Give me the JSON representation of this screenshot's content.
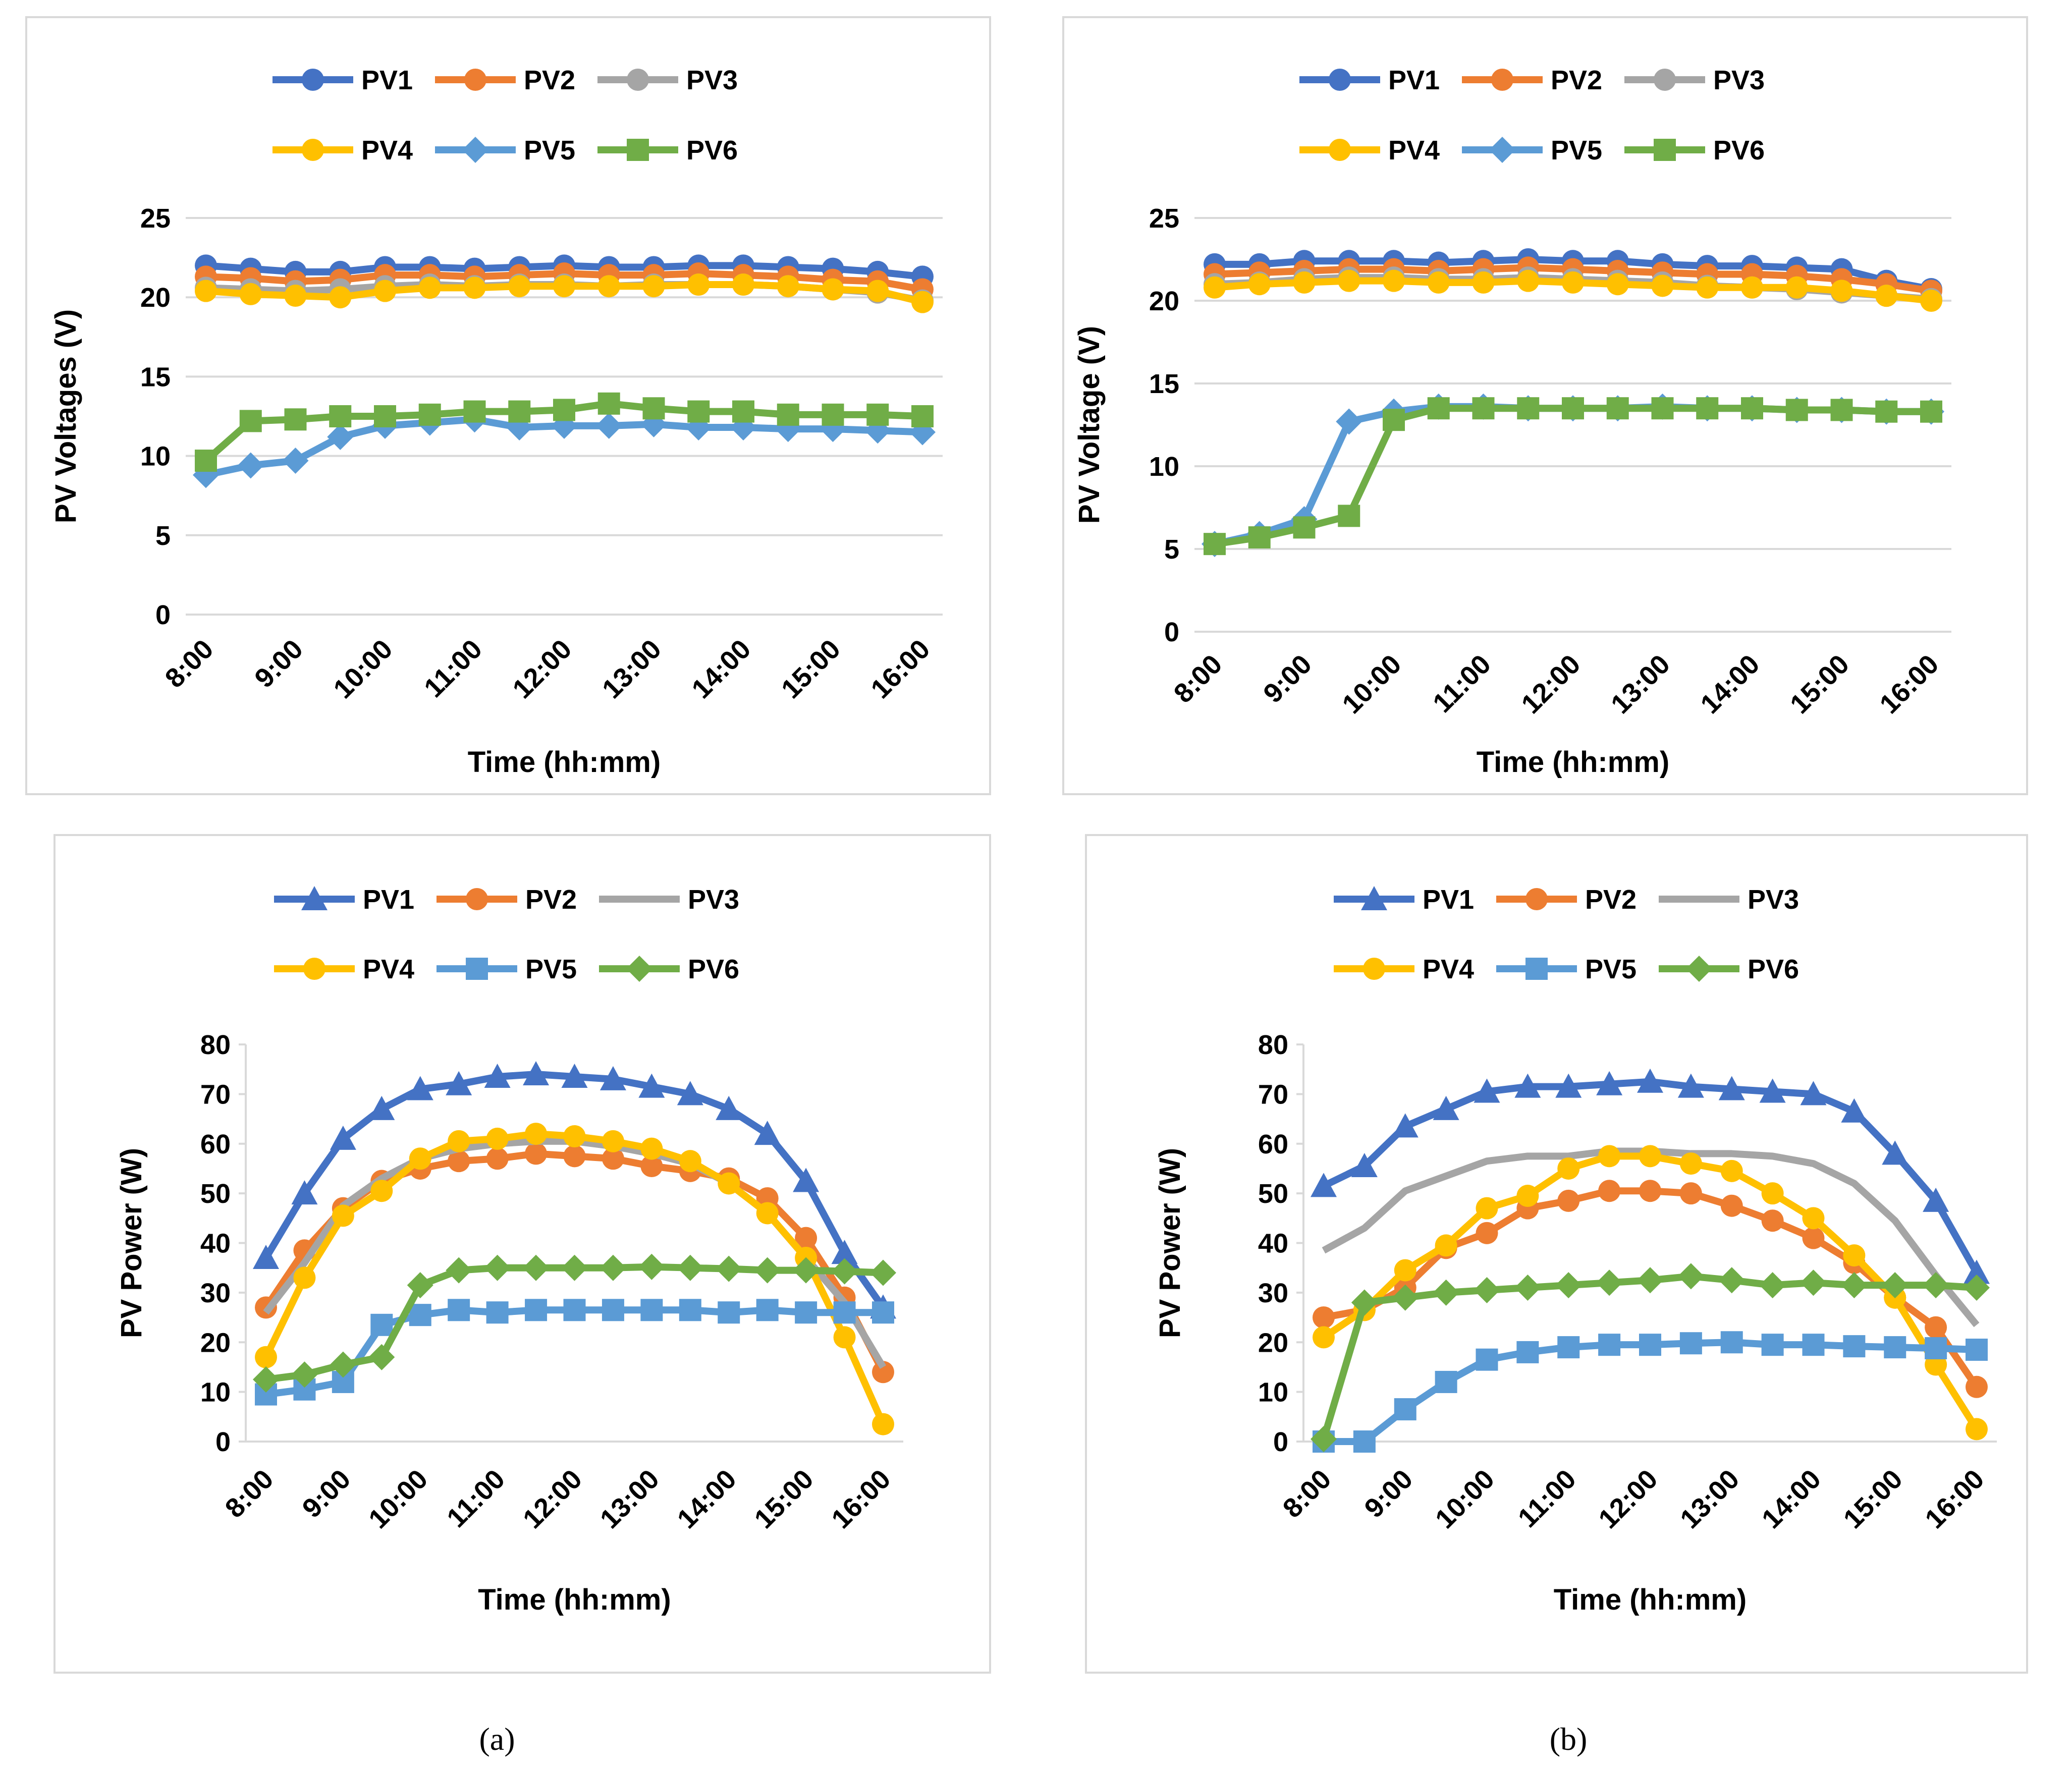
{
  "captions": [
    "(a)",
    "(b)"
  ],
  "colors": {
    "PV1": "#4472C4",
    "PV2": "#ED7D31",
    "PV3": "#A5A5A5",
    "PV4": "#FFC000",
    "PV5": "#5B9BD5",
    "PV6": "#70AD47",
    "grid": "#D9D9D9",
    "frame": "#D9D9D9"
  },
  "chart_data": [
    {
      "id": "a-voltage",
      "type": "line",
      "xlabel": "Time (hh:mm)",
      "ylabel": "PV Voltages (V)",
      "ylim": [
        0,
        25
      ],
      "yticks": [
        0,
        5,
        10,
        15,
        20,
        25
      ],
      "categories": [
        "8:00",
        "9:00",
        "10:00",
        "11:00",
        "12:00",
        "13:00",
        "14:00",
        "15:00",
        "16:00"
      ],
      "grid": true,
      "legend": "top",
      "series": [
        {
          "name": "PV1",
          "marker": "circle",
          "x": [
            8,
            8.5,
            9,
            9.5,
            10,
            10.5,
            11,
            11.5,
            12,
            12.5,
            13,
            13.5,
            14,
            14.5,
            15,
            15.5,
            16
          ],
          "values": [
            22,
            21.8,
            21.6,
            21.6,
            21.9,
            21.9,
            21.8,
            21.9,
            22,
            21.9,
            21.9,
            22,
            22,
            21.9,
            21.8,
            21.6,
            21.3
          ]
        },
        {
          "name": "PV2",
          "marker": "circle",
          "x": [
            8,
            8.5,
            9,
            9.5,
            10,
            10.5,
            11,
            11.5,
            12,
            12.5,
            13,
            13.5,
            14,
            14.5,
            15,
            15.5,
            16
          ],
          "values": [
            21.3,
            21.2,
            21,
            21.1,
            21.4,
            21.4,
            21.3,
            21.4,
            21.5,
            21.4,
            21.4,
            21.5,
            21.4,
            21.3,
            21.1,
            21,
            20.5
          ]
        },
        {
          "name": "PV3",
          "marker": "circle",
          "x": [
            8,
            8.5,
            9,
            9.5,
            10,
            10.5,
            11,
            11.5,
            12,
            12.5,
            13,
            13.5,
            14,
            14.5,
            15,
            15.5,
            16
          ],
          "values": [
            20.6,
            20.5,
            20.4,
            20.5,
            20.7,
            20.8,
            20.7,
            20.8,
            20.8,
            20.7,
            20.8,
            20.8,
            20.8,
            20.7,
            20.5,
            20.3,
            19.8
          ]
        },
        {
          "name": "PV4",
          "marker": "circle",
          "x": [
            8,
            8.5,
            9,
            9.5,
            10,
            10.5,
            11,
            11.5,
            12,
            12.5,
            13,
            13.5,
            14,
            14.5,
            15,
            15.5,
            16
          ],
          "values": [
            20.4,
            20.2,
            20.1,
            20,
            20.4,
            20.6,
            20.6,
            20.7,
            20.7,
            20.7,
            20.7,
            20.8,
            20.8,
            20.7,
            20.5,
            20.4,
            19.7
          ]
        },
        {
          "name": "PV5",
          "marker": "diamond",
          "x": [
            8,
            8.5,
            9,
            9.5,
            10,
            10.5,
            11,
            11.5,
            12,
            12.5,
            13,
            13.5,
            14,
            14.5,
            15,
            15.5,
            16
          ],
          "values": [
            8.8,
            9.4,
            9.7,
            11.2,
            11.9,
            12.1,
            12.3,
            11.8,
            11.9,
            11.9,
            12,
            11.8,
            11.8,
            11.7,
            11.7,
            11.6,
            11.5
          ]
        },
        {
          "name": "PV6",
          "marker": "square",
          "x": [
            8,
            8.5,
            9,
            9.5,
            10,
            10.5,
            11,
            11.5,
            12,
            12.5,
            13,
            13.5,
            14,
            14.5,
            15,
            15.5,
            16
          ],
          "values": [
            9.7,
            12.2,
            12.3,
            12.5,
            12.5,
            12.6,
            12.8,
            12.8,
            12.9,
            13.3,
            13,
            12.8,
            12.8,
            12.6,
            12.6,
            12.6,
            12.5
          ]
        }
      ]
    },
    {
      "id": "b-voltage",
      "type": "line",
      "xlabel": "Time (hh:mm)",
      "ylabel": "PV Voltage (V)",
      "ylim": [
        0,
        25
      ],
      "yticks": [
        0,
        5,
        10,
        15,
        20,
        25
      ],
      "categories": [
        "8:00",
        "9:00",
        "10:00",
        "11:00",
        "12:00",
        "13:00",
        "14:00",
        "15:00",
        "16:00"
      ],
      "grid": true,
      "legend": "top",
      "series": [
        {
          "name": "PV1",
          "marker": "circle",
          "x": [
            8,
            8.5,
            9,
            9.5,
            10,
            10.5,
            11,
            11.5,
            12,
            12.5,
            13,
            13.5,
            14,
            14.5,
            15,
            15.5,
            16
          ],
          "values": [
            22.2,
            22.2,
            22.4,
            22.4,
            22.4,
            22.3,
            22.4,
            22.5,
            22.4,
            22.4,
            22.2,
            22.1,
            22.1,
            22,
            21.9,
            21.2,
            20.7
          ]
        },
        {
          "name": "PV2",
          "marker": "circle",
          "x": [
            8,
            8.5,
            9,
            9.5,
            10,
            10.5,
            11,
            11.5,
            12,
            12.5,
            13,
            13.5,
            14,
            14.5,
            15,
            15.5,
            16
          ],
          "values": [
            21.6,
            21.7,
            21.8,
            21.9,
            21.9,
            21.8,
            21.9,
            22,
            21.9,
            21.8,
            21.7,
            21.6,
            21.6,
            21.5,
            21.3,
            21,
            20.6
          ]
        },
        {
          "name": "PV3",
          "marker": "circle",
          "x": [
            8,
            8.5,
            9,
            9.5,
            10,
            10.5,
            11,
            11.5,
            12,
            12.5,
            13,
            13.5,
            14,
            14.5,
            15,
            15.5,
            16
          ],
          "values": [
            21,
            21.1,
            21.3,
            21.4,
            21.4,
            21.3,
            21.3,
            21.4,
            21.3,
            21.2,
            21.1,
            20.9,
            20.8,
            20.7,
            20.5,
            20.3,
            20.1
          ]
        },
        {
          "name": "PV4",
          "marker": "circle",
          "x": [
            8,
            8.5,
            9,
            9.5,
            10,
            10.5,
            11,
            11.5,
            12,
            12.5,
            13,
            13.5,
            14,
            14.5,
            15,
            15.5,
            16
          ],
          "values": [
            20.8,
            21,
            21.1,
            21.2,
            21.2,
            21.1,
            21.1,
            21.2,
            21.1,
            21,
            20.9,
            20.8,
            20.8,
            20.8,
            20.6,
            20.3,
            20
          ]
        },
        {
          "name": "PV5",
          "marker": "diamond",
          "x": [
            8,
            8.5,
            9,
            9.5,
            10,
            10.5,
            11,
            11.5,
            12,
            12.5,
            13,
            13.5,
            14,
            14.5,
            15,
            15.5,
            16
          ],
          "values": [
            5.3,
            5.9,
            6.8,
            12.7,
            13.3,
            13.6,
            13.6,
            13.5,
            13.5,
            13.5,
            13.6,
            13.5,
            13.5,
            13.4,
            13.4,
            13.3,
            13.3
          ]
        },
        {
          "name": "PV6",
          "marker": "square",
          "x": [
            8,
            8.5,
            9,
            9.5,
            10,
            10.5,
            11,
            11.5,
            12,
            12.5,
            13,
            13.5,
            14,
            14.5,
            15,
            15.5,
            16
          ],
          "values": [
            5.3,
            5.7,
            6.3,
            7,
            12.8,
            13.5,
            13.5,
            13.5,
            13.5,
            13.5,
            13.5,
            13.5,
            13.5,
            13.4,
            13.4,
            13.3,
            13.3
          ]
        }
      ]
    },
    {
      "id": "a-power",
      "type": "line",
      "xlabel": "Time (hh:mm)",
      "ylabel": "PV Power (W)",
      "ylim": [
        0,
        80
      ],
      "yticks": [
        0,
        10,
        20,
        30,
        40,
        50,
        60,
        70,
        80
      ],
      "categories": [
        "8:00",
        "9:00",
        "10:00",
        "11:00",
        "12:00",
        "13:00",
        "14:00",
        "15:00",
        "16:00"
      ],
      "grid": false,
      "legend": "top",
      "series": [
        {
          "name": "PV1",
          "marker": "triangle",
          "x": [
            8,
            8.5,
            9,
            9.5,
            10,
            10.5,
            11,
            11.5,
            12,
            12.5,
            13,
            13.5,
            14,
            14.5,
            15,
            15.5,
            16
          ],
          "values": [
            37,
            50,
            61,
            67,
            71,
            72,
            73.5,
            74,
            73.5,
            73,
            71.5,
            70,
            67,
            62,
            52.5,
            38,
            27
          ]
        },
        {
          "name": "PV2",
          "marker": "circle",
          "x": [
            8,
            8.5,
            9,
            9.5,
            10,
            10.5,
            11,
            11.5,
            12,
            12.5,
            13,
            13.5,
            14,
            14.5,
            15,
            15.5,
            16
          ],
          "values": [
            27,
            38.5,
            47,
            52.5,
            55,
            56.5,
            57,
            58,
            57.5,
            57,
            55.5,
            54.5,
            53,
            49,
            41,
            29,
            14
          ]
        },
        {
          "name": "PV3",
          "marker": "none",
          "x": [
            8,
            8.5,
            9,
            9.5,
            10,
            10.5,
            11,
            11.5,
            12,
            12.5,
            13,
            13.5,
            14,
            14.5,
            15,
            15.5,
            16
          ],
          "values": [
            26,
            36,
            47.5,
            53,
            57,
            59,
            60,
            60.5,
            60.5,
            59.5,
            58,
            56,
            52,
            46,
            37,
            28,
            15
          ]
        },
        {
          "name": "PV4",
          "marker": "circle",
          "x": [
            8,
            8.5,
            9,
            9.5,
            10,
            10.5,
            11,
            11.5,
            12,
            12.5,
            13,
            13.5,
            14,
            14.5,
            15,
            15.5,
            16
          ],
          "values": [
            17,
            33,
            45.5,
            50.5,
            57,
            60.5,
            61,
            62,
            61.5,
            60.5,
            59,
            56.5,
            52,
            46,
            37,
            21,
            3.5
          ]
        },
        {
          "name": "PV5",
          "marker": "square",
          "x": [
            8,
            8.5,
            9,
            9.5,
            10,
            10.5,
            11,
            11.5,
            12,
            12.5,
            13,
            13.5,
            14,
            14.5,
            15,
            15.5,
            16
          ],
          "values": [
            9.5,
            10.5,
            12,
            23.5,
            25.5,
            26.5,
            26,
            26.5,
            26.5,
            26.5,
            26.5,
            26.5,
            26,
            26.5,
            26,
            26,
            26
          ]
        },
        {
          "name": "PV6",
          "marker": "diamond",
          "x": [
            8,
            8.5,
            9,
            9.5,
            10,
            10.5,
            11,
            11.5,
            12,
            12.5,
            13,
            13.5,
            14,
            14.5,
            15,
            15.5,
            16
          ],
          "values": [
            12.5,
            13.5,
            15.5,
            17,
            31.5,
            34.5,
            35,
            35,
            35,
            35,
            35.2,
            35,
            34.8,
            34.5,
            34.5,
            34.3,
            34
          ]
        }
      ]
    },
    {
      "id": "b-power",
      "type": "line",
      "xlabel": "Time (hh:mm)",
      "ylabel": "PV Power (W)",
      "ylim": [
        0,
        80
      ],
      "yticks": [
        0,
        10,
        20,
        30,
        40,
        50,
        60,
        70,
        80
      ],
      "categories": [
        "8:00",
        "9:00",
        "10:00",
        "11:00",
        "12:00",
        "13:00",
        "14:00",
        "15:00",
        "16:00"
      ],
      "grid": false,
      "legend": "top",
      "series": [
        {
          "name": "PV1",
          "marker": "triangle",
          "x": [
            8,
            8.5,
            9,
            9.5,
            10,
            10.5,
            11,
            11.5,
            12,
            12.5,
            13,
            13.5,
            14,
            14.5,
            15,
            15.5,
            16
          ],
          "values": [
            51.5,
            55.5,
            63.5,
            67,
            70.5,
            71.5,
            71.5,
            72,
            72.5,
            71.5,
            71,
            70.5,
            70,
            66.5,
            58,
            48.5,
            34
          ]
        },
        {
          "name": "PV2",
          "marker": "circle",
          "x": [
            8,
            8.5,
            9,
            9.5,
            10,
            10.5,
            11,
            11.5,
            12,
            12.5,
            13,
            13.5,
            14,
            14.5,
            15,
            15.5,
            16
          ],
          "values": [
            25,
            26.5,
            31,
            39,
            42,
            47,
            48.5,
            50.5,
            50.5,
            50,
            47.5,
            44.5,
            41,
            36,
            29,
            23,
            11
          ]
        },
        {
          "name": "PV3",
          "marker": "none",
          "x": [
            8,
            8.5,
            9,
            9.5,
            10,
            10.5,
            11,
            11.5,
            12,
            12.5,
            13,
            13.5,
            14,
            14.5,
            15,
            15.5,
            16
          ],
          "values": [
            38.5,
            43,
            50.5,
            53.5,
            56.5,
            57.5,
            57.5,
            58.5,
            58.5,
            58,
            58,
            57.5,
            56,
            52,
            44.5,
            33.5,
            23.5
          ]
        },
        {
          "name": "PV4",
          "marker": "circle",
          "x": [
            8,
            8.5,
            9,
            9.5,
            10,
            10.5,
            11,
            11.5,
            12,
            12.5,
            13,
            13.5,
            14,
            14.5,
            15,
            15.5,
            16
          ],
          "values": [
            21,
            26.5,
            34.5,
            39.5,
            47,
            49.5,
            55,
            57.5,
            57.5,
            56,
            54.5,
            50,
            45,
            37.5,
            29,
            15.5,
            2.5
          ]
        },
        {
          "name": "PV5",
          "marker": "square",
          "x": [
            8,
            8.5,
            9,
            9.5,
            10,
            10.5,
            11,
            11.5,
            12,
            12.5,
            13,
            13.5,
            14,
            14.5,
            15,
            15.5,
            16
          ],
          "values": [
            0,
            0,
            6.5,
            12,
            16.5,
            18,
            19,
            19.5,
            19.5,
            19.8,
            20,
            19.5,
            19.5,
            19.2,
            19,
            18.8,
            18.5
          ]
        },
        {
          "name": "PV6",
          "marker": "diamond",
          "x": [
            8,
            8.5,
            9,
            9.5,
            10,
            10.5,
            11,
            11.5,
            12,
            12.5,
            13,
            13.5,
            14,
            14.5,
            15,
            15.5,
            16
          ],
          "values": [
            0.5,
            28,
            29,
            30,
            30.5,
            31,
            31.5,
            32,
            32.5,
            33.3,
            32.5,
            31.5,
            32,
            31.5,
            31.5,
            31.5,
            31
          ]
        }
      ]
    }
  ]
}
